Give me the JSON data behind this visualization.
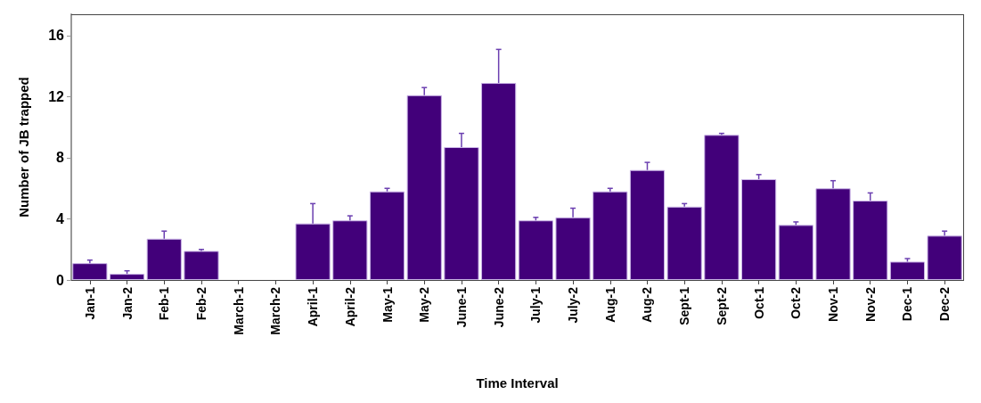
{
  "chart_data": {
    "type": "bar",
    "xlabel": "Time Interval",
    "ylabel": "Number of JB trapped",
    "categories": [
      "Jan-1",
      "Jan-2",
      "Feb-1",
      "Feb-2",
      "March-1",
      "March-2",
      "April-1",
      "April-2",
      "May-1",
      "May-2",
      "June-1",
      "June-2",
      "July-1",
      "July-2",
      "Aug-1",
      "Aug-2",
      "Sept-1",
      "Sept-2",
      "Oct-1",
      "Oct-2",
      "Nov-1",
      "Nov-2",
      "Dec-1",
      "Dec-2"
    ],
    "values": [
      1.1,
      0.4,
      2.7,
      1.9,
      0,
      0,
      3.7,
      3.9,
      5.8,
      12.1,
      8.7,
      12.9,
      3.9,
      4.1,
      5.8,
      7.2,
      4.8,
      9.5,
      6.6,
      3.6,
      6.0,
      5.2,
      1.2,
      2.9
    ],
    "errors": [
      [
        1.1,
        1.3
      ],
      [
        0.4,
        0.6
      ],
      [
        2.7,
        3.2
      ],
      [
        1.9,
        2.0
      ],
      null,
      null,
      [
        3.7,
        5.0
      ],
      [
        3.9,
        4.2
      ],
      [
        5.8,
        6.0
      ],
      [
        12.1,
        12.6
      ],
      [
        8.7,
        9.6
      ],
      [
        12.9,
        15.1
      ],
      [
        3.9,
        4.1
      ],
      [
        4.1,
        4.7
      ],
      [
        5.8,
        6.0
      ],
      [
        7.2,
        7.7
      ],
      [
        4.8,
        5.0
      ],
      [
        9.5,
        9.6
      ],
      [
        6.6,
        6.9
      ],
      [
        3.6,
        3.8
      ],
      [
        6.0,
        6.5
      ],
      [
        5.2,
        5.7
      ],
      [
        1.2,
        1.4
      ],
      [
        2.9,
        3.2
      ]
    ],
    "color": "#42007a",
    "ylim": [
      0,
      17.4
    ],
    "yticks": [
      0,
      4,
      8,
      12,
      16
    ],
    "grid": false
  }
}
